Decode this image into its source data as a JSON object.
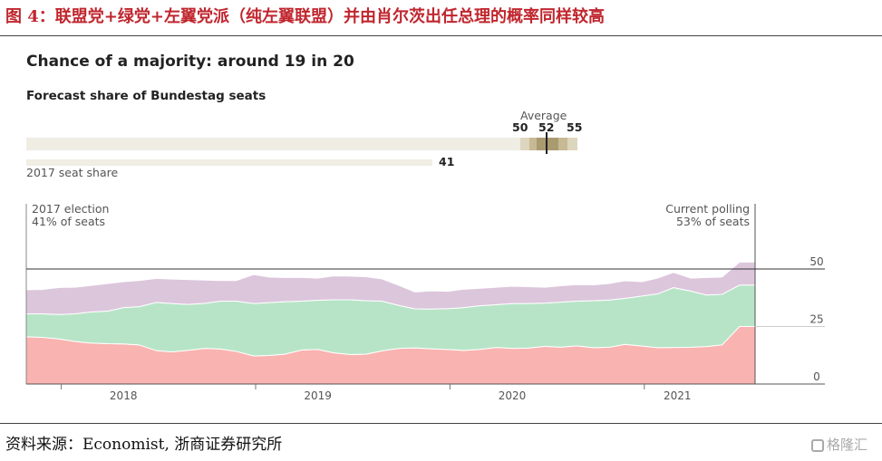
{
  "figure_title": "图 4：联盟党+绿党+左翼党派（纯左翼联盟）并由肖尔茨出任总理的概率同样较高",
  "source": "资料来源：Economist, 浙商证券研究所",
  "watermark": "格隆汇",
  "headline": "Chance of a majority: around 19 in 20",
  "subhead": "Forecast share of Bundestag seats",
  "forecast": {
    "average_label": "Average",
    "low": "50",
    "mid": "52",
    "high": "55",
    "seat_share_value": "41",
    "seat_share_label": "2017 seat share"
  },
  "annotations": {
    "left_line1": "2017 election",
    "left_line2": "41% of seats",
    "right_line1": "Current polling",
    "right_line2": "53% of seats"
  },
  "colors": {
    "title": "#c0262e",
    "red_band": "#f9b3b0",
    "green_band": "#b7e4c7",
    "purple_band": "#dcc6dc"
  },
  "chart_data": {
    "type": "area",
    "stacked": true,
    "x": [
      2017.75,
      2017.83,
      2017.92,
      2018.0,
      2018.08,
      2018.17,
      2018.25,
      2018.33,
      2018.42,
      2018.5,
      2018.58,
      2018.67,
      2018.75,
      2018.83,
      2018.92,
      2019.0,
      2019.08,
      2019.17,
      2019.25,
      2019.33,
      2019.42,
      2019.5,
      2019.58,
      2019.67,
      2019.75,
      2019.83,
      2019.92,
      2020.0,
      2020.08,
      2020.17,
      2020.25,
      2020.33,
      2020.42,
      2020.5,
      2020.58,
      2020.67,
      2020.75,
      2020.83,
      2020.92,
      2021.0,
      2021.08,
      2021.17,
      2021.25,
      2021.33,
      2021.42,
      2021.5
    ],
    "series": [
      {
        "values": [
          20.5,
          20.3,
          19.6,
          18.5,
          17.8,
          17.5,
          17.4,
          17.0,
          14.5,
          14.0,
          14.6,
          15.5,
          15.2,
          14.2,
          12.2,
          12.4,
          13.0,
          14.8,
          15.0,
          13.6,
          12.8,
          13.0,
          14.4,
          15.5,
          15.7,
          15.3,
          15.0,
          14.6,
          15.0,
          15.9,
          15.5,
          15.6,
          16.4,
          16.0,
          16.6,
          15.8,
          16.0,
          17.2,
          16.5,
          15.8,
          15.9,
          16.0,
          16.3,
          17.0,
          25.0,
          25.0
        ]
      },
      {
        "values": [
          10.0,
          10.2,
          10.6,
          12.0,
          13.5,
          14.2,
          15.8,
          16.6,
          21.0,
          21.0,
          20.0,
          19.6,
          20.8,
          21.8,
          22.8,
          23.0,
          22.8,
          21.2,
          21.4,
          23.0,
          23.8,
          23.2,
          21.6,
          18.6,
          17.0,
          17.3,
          17.8,
          18.6,
          19.0,
          18.6,
          19.5,
          19.4,
          18.8,
          19.6,
          19.4,
          20.4,
          20.5,
          20.0,
          21.8,
          23.4,
          26.0,
          24.4,
          22.4,
          22.0,
          18.0,
          18.0
        ]
      },
      {
        "values": [
          10.5,
          10.6,
          11.8,
          11.6,
          11.5,
          12.0,
          11.3,
          11.4,
          10.4,
          10.6,
          10.8,
          10.1,
          9.0,
          9.0,
          12.6,
          11.1,
          10.5,
          10.3,
          9.6,
          10.4,
          10.3,
          10.4,
          9.7,
          8.7,
          7.3,
          7.9,
          7.5,
          8.0,
          7.6,
          7.6,
          7.5,
          7.3,
          6.9,
          7.1,
          7.2,
          6.9,
          7.2,
          7.7,
          6.2,
          6.9,
          6.6,
          5.6,
          7.6,
          7.5,
          10.0,
          10.0
        ]
      }
    ],
    "ylim": [
      0,
      50
    ],
    "yticks": [
      "0",
      "25",
      "50"
    ],
    "xticks": [
      "2018",
      "2019",
      "2020",
      "2021"
    ],
    "xtick_values": [
      2018.25,
      2019.25,
      2020.25,
      2021.1
    ],
    "majority_line": 50,
    "xlim": [
      2017.75,
      2021.55
    ]
  }
}
